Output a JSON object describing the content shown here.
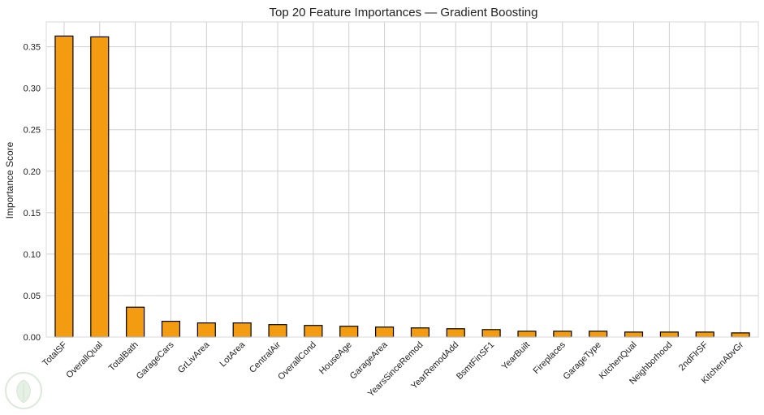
{
  "chart_data": {
    "type": "bar",
    "title": "Top 20 Feature Importances — Gradient Boosting",
    "xlabel": "",
    "ylabel": "Importance Score",
    "ylim": [
      0,
      0.38
    ],
    "yticks": [
      0.0,
      0.05,
      0.1,
      0.15,
      0.2,
      0.25,
      0.3,
      0.35
    ],
    "ytick_labels": [
      "0.00",
      "0.05",
      "0.10",
      "0.15",
      "0.20",
      "0.25",
      "0.30",
      "0.35"
    ],
    "grid": true,
    "bar_color": "#f39c12",
    "edge_color": "#000000",
    "categories": [
      "TotalSF",
      "OverallQual",
      "TotalBath",
      "GarageCars",
      "GrLivArea",
      "LotArea",
      "CentralAir",
      "OverallCond",
      "HouseAge",
      "GarageArea",
      "YearsSinceRemod",
      "YearRemodAdd",
      "BsmtFinSF1",
      "YearBuilt",
      "Fireplaces",
      "GarageType",
      "KitchenQual",
      "Neighborhood",
      "2ndFlrSF",
      "KitchenAbvGr"
    ],
    "values": [
      0.363,
      0.362,
      0.036,
      0.019,
      0.017,
      0.017,
      0.015,
      0.014,
      0.013,
      0.012,
      0.011,
      0.01,
      0.009,
      0.007,
      0.007,
      0.007,
      0.006,
      0.006,
      0.006,
      0.005
    ]
  }
}
